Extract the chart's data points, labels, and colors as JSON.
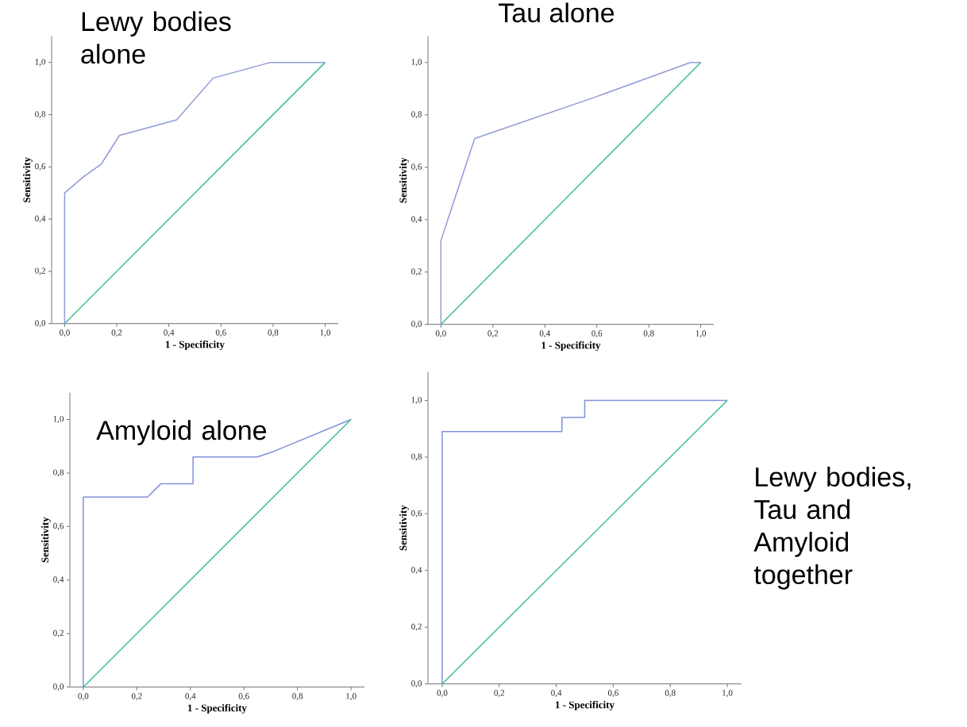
{
  "chart_data": [
    {
      "type": "line",
      "title": "Lewy bodies alone",
      "xlabel": "1 - Specificity",
      "ylabel": "Sensitivity",
      "xlim": [
        -0.05,
        1.05
      ],
      "ylim": [
        0,
        1.1
      ],
      "xticks": [
        {
          "value": 0,
          "label": "0,0"
        },
        {
          "value": 0.2,
          "label": "0,2"
        },
        {
          "value": 0.4,
          "label": "0,4"
        },
        {
          "value": 0.6,
          "label": "0,6"
        },
        {
          "value": 0.8,
          "label": "0,8"
        },
        {
          "value": 1,
          "label": "1,0"
        }
      ],
      "yticks": [
        {
          "value": 0,
          "label": "0,0"
        },
        {
          "value": 0.2,
          "label": "0,2"
        },
        {
          "value": 0.4,
          "label": "0,4"
        },
        {
          "value": 0.6,
          "label": "0,6"
        },
        {
          "value": 0.8,
          "label": "0,8"
        },
        {
          "value": 1,
          "label": "1,0"
        }
      ],
      "series": [
        {
          "color": "#8f9bd8",
          "x": [
            0,
            0,
            0.07,
            0.14,
            0.21,
            0.43,
            0.57,
            0.79,
            1
          ],
          "values": [
            0,
            0.5,
            0.56,
            0.61,
            0.72,
            0.78,
            0.94,
            1.0,
            1.0
          ]
        },
        {
          "color": "#3dbf8f",
          "x": [
            0,
            1
          ],
          "values": [
            0,
            1
          ]
        }
      ]
    },
    {
      "type": "line",
      "title": "Tau alone",
      "xlabel": "1 - Specificity",
      "ylabel": "Sensitivity",
      "xlim": [
        -0.05,
        1.05
      ],
      "ylim": [
        0,
        1.1
      ],
      "xticks": [
        {
          "value": 0,
          "label": "0,0"
        },
        {
          "value": 0.2,
          "label": "0,2"
        },
        {
          "value": 0.4,
          "label": "0,4"
        },
        {
          "value": 0.6,
          "label": "0,6"
        },
        {
          "value": 0.8,
          "label": "0,8"
        },
        {
          "value": 1,
          "label": "1,0"
        }
      ],
      "yticks": [
        {
          "value": 0,
          "label": "0,0"
        },
        {
          "value": 0.2,
          "label": "0,2"
        },
        {
          "value": 0.4,
          "label": "0,4"
        },
        {
          "value": 0.6,
          "label": "0,6"
        },
        {
          "value": 0.8,
          "label": "0,8"
        },
        {
          "value": 1,
          "label": "1,0"
        }
      ],
      "series": [
        {
          "color": "#8f9bd8",
          "x": [
            0,
            0,
            0.13,
            0.6,
            0.96,
            1
          ],
          "values": [
            0,
            0.32,
            0.71,
            0.87,
            1.0,
            1.0
          ]
        },
        {
          "color": "#3dbf8f",
          "x": [
            0,
            1
          ],
          "values": [
            0,
            1
          ]
        }
      ]
    },
    {
      "type": "line",
      "title": "Amyloid alone",
      "xlabel": "1 - Specificity",
      "ylabel": "Sensitivity",
      "xlim": [
        -0.05,
        1.05
      ],
      "ylim": [
        0,
        1.1
      ],
      "xticks": [
        {
          "value": 0,
          "label": "0,0"
        },
        {
          "value": 0.2,
          "label": "0,2"
        },
        {
          "value": 0.4,
          "label": "0,4"
        },
        {
          "value": 0.6,
          "label": "0,6"
        },
        {
          "value": 0.8,
          "label": "0,8"
        },
        {
          "value": 1,
          "label": "1,0"
        }
      ],
      "yticks": [
        {
          "value": 0,
          "label": "0,0"
        },
        {
          "value": 0.2,
          "label": "0,2"
        },
        {
          "value": 0.4,
          "label": "0,4"
        },
        {
          "value": 0.6,
          "label": "0,6"
        },
        {
          "value": 0.8,
          "label": "0,8"
        },
        {
          "value": 1,
          "label": "1,0"
        }
      ],
      "series": [
        {
          "color": "#7f92d8",
          "x": [
            0,
            0,
            0.24,
            0.29,
            0.41,
            0.41,
            0.65,
            0.71,
            1
          ],
          "values": [
            0,
            0.71,
            0.71,
            0.76,
            0.76,
            0.86,
            0.86,
            0.88,
            1.0
          ]
        },
        {
          "color": "#3dbf8f",
          "x": [
            0,
            1
          ],
          "values": [
            0,
            1
          ]
        }
      ]
    },
    {
      "type": "line",
      "title": "Lewy bodies, Tau and Amyloid together",
      "xlabel": "1 - Specificity",
      "ylabel": "Sensitivity",
      "xlim": [
        -0.05,
        1.05
      ],
      "ylim": [
        0,
        1.1
      ],
      "xticks": [
        {
          "value": 0,
          "label": "0,0"
        },
        {
          "value": 0.2,
          "label": "0,2"
        },
        {
          "value": 0.4,
          "label": "0,4"
        },
        {
          "value": 0.6,
          "label": "0,6"
        },
        {
          "value": 0.8,
          "label": "0,8"
        },
        {
          "value": 1,
          "label": "1,0"
        }
      ],
      "yticks": [
        {
          "value": 0,
          "label": "0,0"
        },
        {
          "value": 0.2,
          "label": "0,2"
        },
        {
          "value": 0.4,
          "label": "0,4"
        },
        {
          "value": 0.6,
          "label": "0,6"
        },
        {
          "value": 0.8,
          "label": "0,8"
        },
        {
          "value": 1,
          "label": "1,0"
        }
      ],
      "series": [
        {
          "color": "#7f92d8",
          "x": [
            0,
            0,
            0.42,
            0.42,
            0.5,
            0.5,
            1
          ],
          "values": [
            0,
            0.89,
            0.89,
            0.94,
            0.94,
            1.0,
            1.0
          ]
        },
        {
          "color": "#3dbf8f",
          "x": [
            0,
            1
          ],
          "values": [
            0,
            1
          ]
        }
      ]
    }
  ]
}
